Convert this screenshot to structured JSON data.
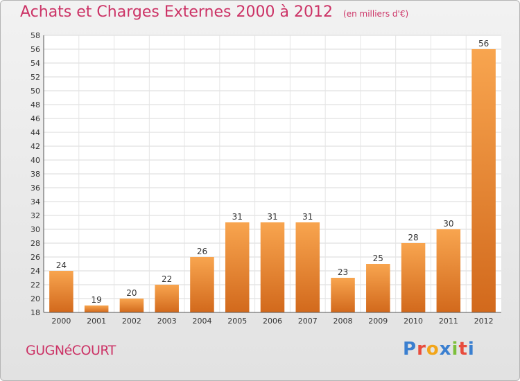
{
  "chart_data": {
    "type": "bar",
    "title": "Achats et Charges Externes 2000 à 2012",
    "subtitle": "(en milliers d'€)",
    "categories": [
      "2000",
      "2001",
      "2002",
      "2003",
      "2004",
      "2005",
      "2006",
      "2007",
      "2008",
      "2009",
      "2010",
      "2011",
      "2012"
    ],
    "values": [
      24,
      19,
      20,
      22,
      26,
      31,
      31,
      31,
      23,
      25,
      28,
      30,
      56
    ],
    "ylim": [
      18,
      58
    ],
    "yticks": [
      18,
      20,
      22,
      24,
      26,
      28,
      30,
      32,
      34,
      36,
      38,
      40,
      42,
      44,
      46,
      48,
      50,
      52,
      54,
      56,
      58
    ],
    "grid": true,
    "legend": "none",
    "bar_color_light": "#f8a54f",
    "bar_color_dark": "#d2691c"
  },
  "footer": {
    "commune": "GUGNéCOURT",
    "brand": "Proxiti"
  },
  "colors": {
    "title": "#cc3366",
    "brand_letters": [
      "#3a7fd0",
      "#e84c3d",
      "#f2a51a",
      "#3a7fd0",
      "#7cbf3a",
      "#e84c3d",
      "#3a7fd0"
    ]
  }
}
